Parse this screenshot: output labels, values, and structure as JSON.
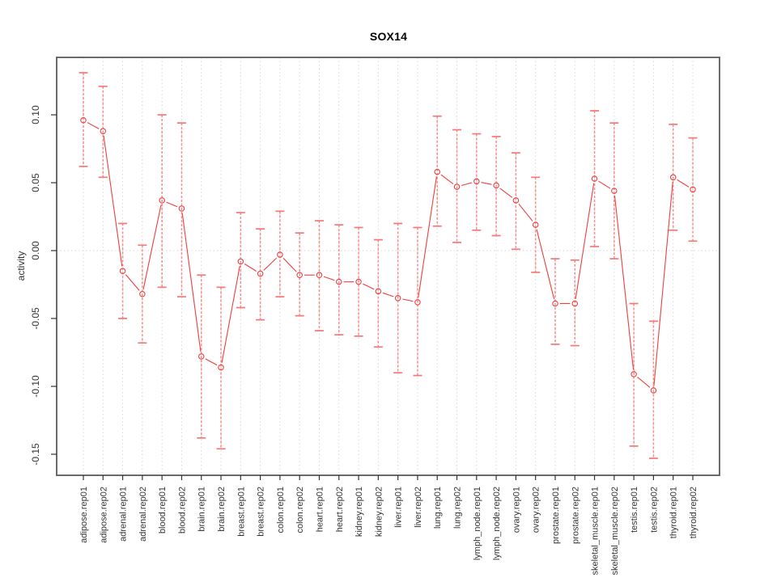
{
  "title": "SOX14",
  "ylabel": "activity",
  "chart_data": {
    "type": "line",
    "title": "SOX14",
    "xlabel": "",
    "ylabel": "activity",
    "legend_position": "none",
    "marker": "open-circle",
    "line_style": "segments-with-gaps-at-points",
    "error_bars": true,
    "grid": "vertical dotted line at every category; horizontal dotted line at y=0",
    "x_tick_label_rotation": "vertical",
    "ylim": [
      -0.1655,
      0.1423
    ],
    "yticks": [
      0.1,
      0.05,
      0.0,
      -0.05,
      -0.1,
      -0.15
    ],
    "ytick_labels": [
      "0.10",
      "0.05",
      "0.00",
      "-0.05",
      "-0.10",
      "-0.15"
    ],
    "categories": [
      "adipose.rep01",
      "adipose.rep02",
      "adrenal.rep01",
      "adrenal.rep02",
      "blood.rep01",
      "blood.rep02",
      "brain.rep01",
      "brain.rep02",
      "breast.rep01",
      "breast.rep02",
      "colon.rep01",
      "colon.rep02",
      "heart.rep01",
      "heart.rep02",
      "kidney.rep01",
      "kidney.rep02",
      "liver.rep01",
      "liver.rep02",
      "lung.rep01",
      "lung.rep02",
      "lymph_node.rep01",
      "lymph_node.rep02",
      "ovary.rep01",
      "ovary.rep02",
      "prostate.rep01",
      "prostate.rep02",
      "skeletal_muscle.rep01",
      "skeletal_muscle.rep02",
      "testis.rep01",
      "testis.rep02",
      "thyroid.rep01",
      "thyroid.rep02"
    ],
    "series": [
      {
        "name": "activity",
        "values": [
          0.096,
          0.088,
          -0.015,
          -0.032,
          0.037,
          0.031,
          -0.078,
          -0.086,
          -0.008,
          -0.017,
          -0.003,
          -0.018,
          -0.018,
          -0.023,
          -0.023,
          -0.03,
          -0.035,
          -0.038,
          0.058,
          0.047,
          0.051,
          0.048,
          0.037,
          0.019,
          -0.039,
          -0.039,
          0.053,
          0.044,
          -0.091,
          -0.103,
          0.054,
          0.045
        ],
        "error_high": [
          0.131,
          0.121,
          0.02,
          0.004,
          0.1,
          0.094,
          -0.018,
          -0.027,
          0.028,
          0.016,
          0.029,
          0.013,
          0.022,
          0.019,
          0.017,
          0.008,
          0.02,
          0.017,
          0.099,
          0.089,
          0.086,
          0.084,
          0.072,
          0.054,
          -0.006,
          -0.007,
          0.103,
          0.094,
          -0.039,
          -0.052,
          0.093,
          0.083
        ],
        "error_low": [
          0.062,
          0.054,
          -0.05,
          -0.068,
          -0.027,
          -0.034,
          -0.138,
          -0.146,
          -0.042,
          -0.051,
          -0.034,
          -0.048,
          -0.059,
          -0.062,
          -0.063,
          -0.071,
          -0.09,
          -0.092,
          0.018,
          0.006,
          0.015,
          0.011,
          0.001,
          -0.016,
          -0.069,
          -0.07,
          0.003,
          -0.006,
          -0.144,
          -0.153,
          0.015,
          0.007
        ]
      }
    ],
    "colors": {
      "line": "#ee3f3f",
      "point": "#ee3f3f",
      "error_bar": "#f98c8c",
      "error_cap": "#f87676",
      "grid": "#d8d8d8",
      "axis_box": "#5a5a5a",
      "tick": "#333333",
      "tick_text": "#333333",
      "background": "#ffffff"
    }
  }
}
